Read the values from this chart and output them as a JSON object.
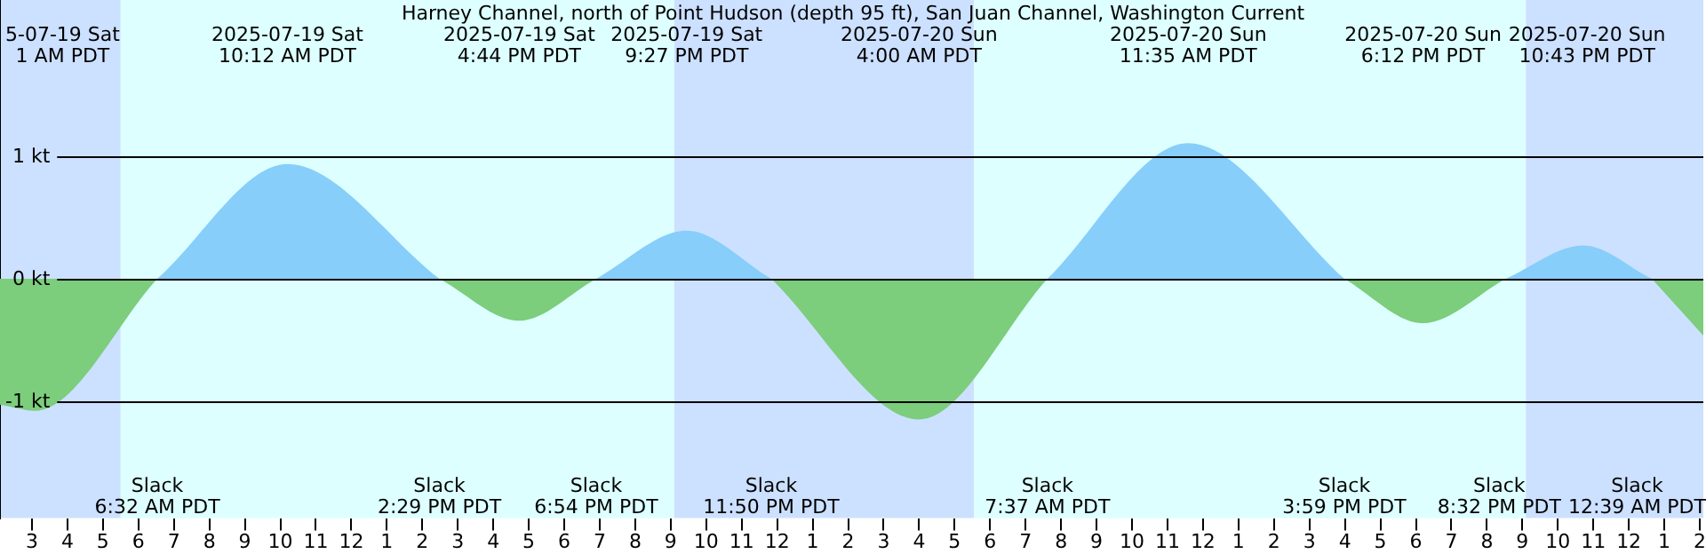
{
  "chart_data": {
    "type": "area",
    "title": "Harney Channel, north of Point Hudson (depth 95 ft), San Juan Channel, Washington Current",
    "x": [
      "2025-07-19T02:06",
      "2025-07-19T03:06",
      "2025-07-19T06:32",
      "2025-07-19T10:12",
      "2025-07-19T14:29",
      "2025-07-19T16:44",
      "2025-07-19T18:54",
      "2025-07-19T21:27",
      "2025-07-19T23:50",
      "2025-07-20T04:00",
      "2025-07-20T07:37",
      "2025-07-20T11:35",
      "2025-07-20T15:59",
      "2025-07-20T18:12",
      "2025-07-20T20:32",
      "2025-07-20T22:43",
      "2025-07-21T00:39",
      "2025-07-21T02:06"
    ],
    "series": [
      {
        "color": "#87cefa",
        "values": [
          null,
          null,
          0,
          0.93,
          0,
          null,
          0,
          0.39,
          0,
          null,
          0,
          1.1,
          0,
          null,
          0,
          0.27,
          0,
          null
        ]
      },
      {
        "color": "#7ccd7c",
        "values": [
          -1.02,
          -1.07,
          0,
          null,
          0,
          -0.34,
          0,
          null,
          0,
          -1.14,
          0,
          null,
          0,
          -0.36,
          0,
          null,
          0,
          -0.46
        ]
      }
    ],
    "xlim": [
      "2025-07-19T02:06",
      "2025-07-21T02:06"
    ],
    "xticks": [
      {
        "value": "2025-07-19T03:00",
        "label": "3"
      },
      {
        "value": "2025-07-19T04:00",
        "label": "4"
      },
      {
        "value": "2025-07-19T05:00",
        "label": "5"
      },
      {
        "value": "2025-07-19T06:00",
        "label": "6"
      },
      {
        "value": "2025-07-19T07:00",
        "label": "7"
      },
      {
        "value": "2025-07-19T08:00",
        "label": "8"
      },
      {
        "value": "2025-07-19T09:00",
        "label": "9"
      },
      {
        "value": "2025-07-19T10:00",
        "label": "10"
      },
      {
        "value": "2025-07-19T11:00",
        "label": "11"
      },
      {
        "value": "2025-07-19T12:00",
        "label": "12"
      },
      {
        "value": "2025-07-19T13:00",
        "label": "1"
      },
      {
        "value": "2025-07-19T14:00",
        "label": "2"
      },
      {
        "value": "2025-07-19T15:00",
        "label": "3"
      },
      {
        "value": "2025-07-19T16:00",
        "label": "4"
      },
      {
        "value": "2025-07-19T17:00",
        "label": "5"
      },
      {
        "value": "2025-07-19T18:00",
        "label": "6"
      },
      {
        "value": "2025-07-19T19:00",
        "label": "7"
      },
      {
        "value": "2025-07-19T20:00",
        "label": "8"
      },
      {
        "value": "2025-07-19T21:00",
        "label": "9"
      },
      {
        "value": "2025-07-19T22:00",
        "label": "10"
      },
      {
        "value": "2025-07-19T23:00",
        "label": "11"
      },
      {
        "value": "2025-07-20T00:00",
        "label": "12"
      },
      {
        "value": "2025-07-20T01:00",
        "label": "1"
      },
      {
        "value": "2025-07-20T02:00",
        "label": "2"
      },
      {
        "value": "2025-07-20T03:00",
        "label": "3"
      },
      {
        "value": "2025-07-20T04:00",
        "label": "4"
      },
      {
        "value": "2025-07-20T05:00",
        "label": "5"
      },
      {
        "value": "2025-07-20T06:00",
        "label": "6"
      },
      {
        "value": "2025-07-20T07:00",
        "label": "7"
      },
      {
        "value": "2025-07-20T08:00",
        "label": "8"
      },
      {
        "value": "2025-07-20T09:00",
        "label": "9"
      },
      {
        "value": "2025-07-20T10:00",
        "label": "10"
      },
      {
        "value": "2025-07-20T11:00",
        "label": "11"
      },
      {
        "value": "2025-07-20T12:00",
        "label": "12"
      },
      {
        "value": "2025-07-20T13:00",
        "label": "1"
      },
      {
        "value": "2025-07-20T14:00",
        "label": "2"
      },
      {
        "value": "2025-07-20T15:00",
        "label": "3"
      },
      {
        "value": "2025-07-20T16:00",
        "label": "4"
      },
      {
        "value": "2025-07-20T17:00",
        "label": "5"
      },
      {
        "value": "2025-07-20T18:00",
        "label": "6"
      },
      {
        "value": "2025-07-20T19:00",
        "label": "7"
      },
      {
        "value": "2025-07-20T20:00",
        "label": "8"
      },
      {
        "value": "2025-07-20T21:00",
        "label": "9"
      },
      {
        "value": "2025-07-20T22:00",
        "label": "10"
      },
      {
        "value": "2025-07-20T23:00",
        "label": "11"
      },
      {
        "value": "2025-07-21T00:00",
        "label": "12"
      },
      {
        "value": "2025-07-21T01:00",
        "label": "1"
      },
      {
        "value": "2025-07-21T02:00",
        "label": "2"
      }
    ],
    "ylim": [
      -1.94,
      2.26
    ],
    "yticks": [
      {
        "value": -1,
        "label": "-1 kt"
      },
      {
        "value": 0,
        "label": "0 kt"
      },
      {
        "value": 1,
        "label": "1 kt"
      }
    ],
    "grid": "y",
    "legend": false,
    "bands": [
      {
        "axis": "x",
        "from": "2025-07-19T02:06",
        "to": "2025-07-19T05:30",
        "color": "#cce0ff"
      },
      {
        "axis": "x",
        "from": "2025-07-19T05:30",
        "to": "2025-07-19T21:06",
        "color": "#ddffff"
      },
      {
        "axis": "x",
        "from": "2025-07-19T21:06",
        "to": "2025-07-20T05:33",
        "color": "#cce0ff"
      },
      {
        "axis": "x",
        "from": "2025-07-20T05:33",
        "to": "2025-07-20T21:06",
        "color": "#ddffff"
      },
      {
        "axis": "x",
        "from": "2025-07-20T21:06",
        "to": "2025-07-21T02:06",
        "color": "#cce0ff"
      }
    ],
    "annotations": [
      "5-07-19 Sat\n1 AM PDT",
      "2025-07-19 Sat\n10:12 AM PDT",
      "2025-07-19 Sat\n4:44 PM PDT",
      "2025-07-19 Sat\n9:27 PM PDT",
      "2025-07-20 Sun\n4:00 AM PDT",
      "2025-07-20 Sun\n11:35 AM PDT",
      "2025-07-20 Sun\n6:12 PM PDT",
      "2025-07-20 Sun\n10:43 PM PDT",
      "Slack\n6:32 AM PDT",
      "Slack\n2:29 PM PDT",
      "Slack\n6:54 PM PDT",
      "Slack\n11:50 PM PDT",
      "Slack\n7:37 AM PDT",
      "Slack\n3:59 PM PDT",
      "Slack\n8:32 PM PDT",
      "Slack\n12:39 AM PDT"
    ]
  }
}
